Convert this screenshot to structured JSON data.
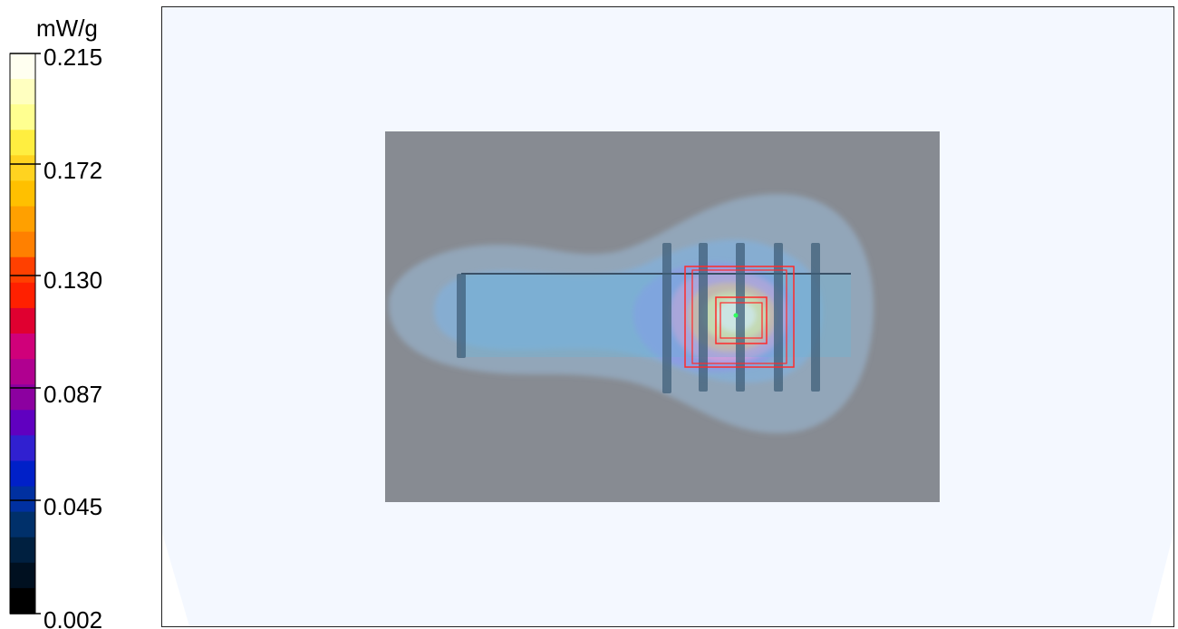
{
  "chart_data": {
    "type": "heatmap",
    "colorbar": {
      "unit": "mW/g",
      "tick_labels": [
        "0.215",
        "0.172",
        "0.130",
        "0.087",
        "0.045",
        "0.002"
      ],
      "min": 0.002,
      "max": 0.215,
      "colors_top_to_bottom": [
        "#fffff0",
        "#ffffc0",
        "#ffff90",
        "#ffee40",
        "#ffd320",
        "#ffc000",
        "#ffa000",
        "#ff8000",
        "#ff4000",
        "#ff2000",
        "#e00030",
        "#d0007a",
        "#b00090",
        "#8c00a0",
        "#6000c0",
        "#3020d0",
        "#0020c8",
        "#0030a0",
        "#00306a",
        "#002040",
        "#001020",
        "#000000"
      ]
    },
    "field_peak_value": 0.215,
    "colors": {
      "background": "#f4f8ff",
      "phone_body": "#878b92",
      "antenna_strip": "#69b4d8",
      "bars": "#3f5f7a",
      "scan_box": "#ff2a2a"
    }
  }
}
